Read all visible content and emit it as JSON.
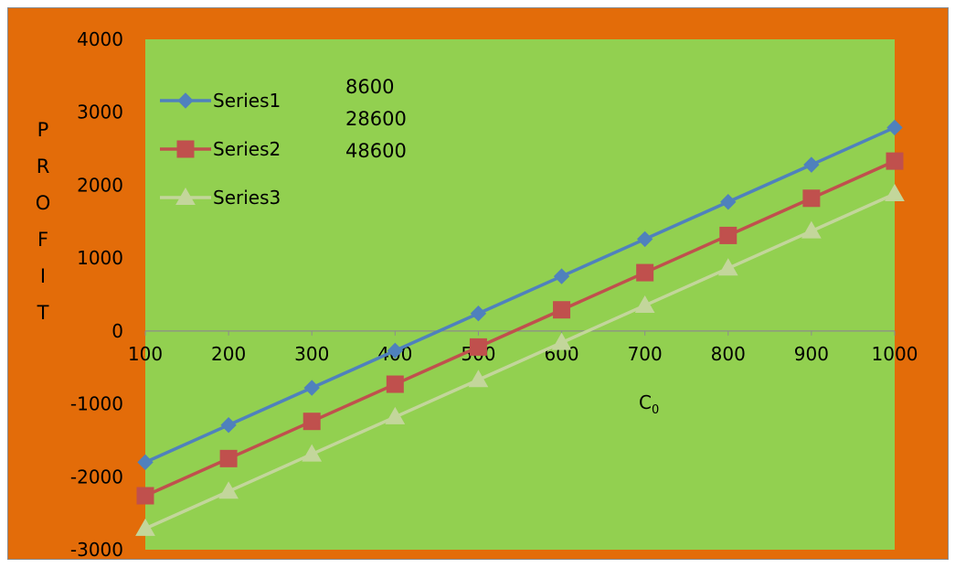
{
  "chart_data": {
    "type": "line",
    "title": "",
    "xlabel": "C0",
    "xlabel_main": "C",
    "xlabel_sub": "0",
    "ylabel": "PROFIT",
    "ylabel_letters": [
      "P",
      "R",
      "O",
      "F",
      "I",
      "T"
    ],
    "x": [
      100,
      200,
      300,
      400,
      500,
      600,
      700,
      800,
      900,
      1000
    ],
    "x_tick_labels": [
      "100",
      "200",
      "300",
      "400",
      "500",
      "600",
      "700",
      "800",
      "900",
      "1000"
    ],
    "y_tick_labels": [
      "4000",
      "3000",
      "2000",
      "1000",
      "0",
      "-1000",
      "-2000",
      "-3000"
    ],
    "xlim": [
      100,
      1000
    ],
    "ylim": [
      -3000,
      4000
    ],
    "y_ticks": [
      4000,
      3000,
      2000,
      1000,
      0,
      -1000,
      -2000,
      -3000
    ],
    "grid": false,
    "legend_position": "top-left",
    "series": [
      {
        "name": "Series1",
        "marker": "diamond",
        "color": "#4f81bd",
        "values": [
          -1800,
          -1290,
          -780,
          -270,
          240,
          750,
          1260,
          1770,
          2280,
          2790
        ]
      },
      {
        "name": "Series2",
        "marker": "square",
        "color": "#c0504d",
        "values": [
          -2260,
          -1750,
          -1240,
          -730,
          -220,
          290,
          800,
          1310,
          1820,
          2330
        ]
      },
      {
        "name": "Series3",
        "marker": "triangle",
        "color": "#c3d69b",
        "values": [
          -2710,
          -2200,
          -1690,
          -1180,
          -670,
          -160,
          350,
          860,
          1370,
          1880
        ]
      }
    ],
    "annotations": [
      "8600",
      "28600",
      "48600"
    ]
  },
  "colors": {
    "outer_background": "#e36c09",
    "plot_background": "#92d050",
    "zero_axis": "#8c8c8c",
    "text": "#000000"
  }
}
